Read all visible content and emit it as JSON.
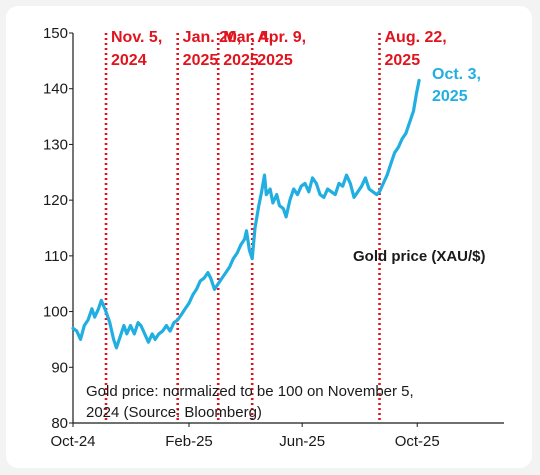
{
  "chart_data": {
    "type": "line",
    "title": "",
    "xlabel": "",
    "ylabel": "",
    "ylim": [
      80,
      150
    ],
    "yticks": [
      80,
      90,
      100,
      110,
      120,
      130,
      140,
      150
    ],
    "xlim": [
      "2024-10-01",
      "2026-01-01"
    ],
    "xticks": [
      {
        "date": "2024-10-01",
        "label": "Oct-24"
      },
      {
        "date": "2025-02-01",
        "label": "Feb-25"
      },
      {
        "date": "2025-06-01",
        "label": "Jun-25"
      },
      {
        "date": "2025-10-01",
        "label": "Oct-25"
      }
    ],
    "grid": false,
    "series": [
      {
        "name": "Gold price (XAU/$)",
        "color": "#21aee0",
        "points": [
          [
            "2024-10-01",
            97
          ],
          [
            "2024-10-05",
            96.5
          ],
          [
            "2024-10-09",
            95
          ],
          [
            "2024-10-13",
            97.5
          ],
          [
            "2024-10-17",
            98.5
          ],
          [
            "2024-10-21",
            100.5
          ],
          [
            "2024-10-24",
            99
          ],
          [
            "2024-10-28",
            100.5
          ],
          [
            "2024-10-31",
            102
          ],
          [
            "2024-11-05",
            100
          ],
          [
            "2024-11-09",
            98
          ],
          [
            "2024-11-13",
            95
          ],
          [
            "2024-11-16",
            93.5
          ],
          [
            "2024-11-20",
            95.5
          ],
          [
            "2024-11-24",
            97.5
          ],
          [
            "2024-11-27",
            96
          ],
          [
            "2024-12-01",
            97.5
          ],
          [
            "2024-12-05",
            96
          ],
          [
            "2024-12-09",
            98
          ],
          [
            "2024-12-12",
            97.5
          ],
          [
            "2024-12-16",
            96
          ],
          [
            "2024-12-20",
            94.5
          ],
          [
            "2024-12-24",
            96
          ],
          [
            "2024-12-27",
            95
          ],
          [
            "2024-12-31",
            96
          ],
          [
            "2025-01-04",
            96.5
          ],
          [
            "2025-01-08",
            97.5
          ],
          [
            "2025-01-12",
            96.5
          ],
          [
            "2025-01-16",
            98
          ],
          [
            "2025-01-20",
            98.5
          ],
          [
            "2025-01-24",
            99.5
          ],
          [
            "2025-01-28",
            100.5
          ],
          [
            "2025-02-01",
            101.5
          ],
          [
            "2025-02-05",
            103
          ],
          [
            "2025-02-09",
            104
          ],
          [
            "2025-02-13",
            105.5
          ],
          [
            "2025-02-17",
            106
          ],
          [
            "2025-02-21",
            107
          ],
          [
            "2025-02-24",
            106
          ],
          [
            "2025-02-28",
            104
          ],
          [
            "2025-03-04",
            105
          ],
          [
            "2025-03-08",
            106
          ],
          [
            "2025-03-12",
            107
          ],
          [
            "2025-03-16",
            108
          ],
          [
            "2025-03-20",
            109.5
          ],
          [
            "2025-03-24",
            110.5
          ],
          [
            "2025-03-28",
            112
          ],
          [
            "2025-04-01",
            113
          ],
          [
            "2025-04-03",
            114.5
          ],
          [
            "2025-04-06",
            111
          ],
          [
            "2025-04-09",
            109.5
          ],
          [
            "2025-04-12",
            115
          ],
          [
            "2025-04-16",
            119
          ],
          [
            "2025-04-19",
            121.5
          ],
          [
            "2025-04-22",
            124.5
          ],
          [
            "2025-04-24",
            121
          ],
          [
            "2025-04-28",
            122
          ],
          [
            "2025-05-01",
            119.5
          ],
          [
            "2025-05-05",
            121
          ],
          [
            "2025-05-08",
            119
          ],
          [
            "2025-05-12",
            118.5
          ],
          [
            "2025-05-15",
            117
          ],
          [
            "2025-05-19",
            120
          ],
          [
            "2025-05-23",
            122
          ],
          [
            "2025-05-27",
            121
          ],
          [
            "2025-05-31",
            122.5
          ],
          [
            "2025-06-04",
            123
          ],
          [
            "2025-06-08",
            121.5
          ],
          [
            "2025-06-12",
            124
          ],
          [
            "2025-06-16",
            123
          ],
          [
            "2025-06-20",
            121
          ],
          [
            "2025-06-24",
            120.5
          ],
          [
            "2025-06-28",
            122
          ],
          [
            "2025-07-02",
            121.5
          ],
          [
            "2025-07-06",
            121
          ],
          [
            "2025-07-10",
            123
          ],
          [
            "2025-07-14",
            122.5
          ],
          [
            "2025-07-18",
            124.5
          ],
          [
            "2025-07-22",
            123
          ],
          [
            "2025-07-26",
            120.5
          ],
          [
            "2025-07-30",
            121.5
          ],
          [
            "2025-08-03",
            122.5
          ],
          [
            "2025-08-07",
            124
          ],
          [
            "2025-08-11",
            122
          ],
          [
            "2025-08-15",
            121.5
          ],
          [
            "2025-08-19",
            121
          ],
          [
            "2025-08-22",
            121.5
          ],
          [
            "2025-08-26",
            123
          ],
          [
            "2025-08-30",
            124.5
          ],
          [
            "2025-09-03",
            126.5
          ],
          [
            "2025-09-07",
            128.5
          ],
          [
            "2025-09-11",
            129.5
          ],
          [
            "2025-09-15",
            131
          ],
          [
            "2025-09-19",
            132
          ],
          [
            "2025-09-23",
            134
          ],
          [
            "2025-09-27",
            136
          ],
          [
            "2025-09-30",
            139
          ],
          [
            "2025-10-03",
            141.5
          ]
        ]
      }
    ],
    "events": [
      {
        "date": "2024-11-05",
        "line1": "Nov. 5,",
        "line2": "2024"
      },
      {
        "date": "2025-01-20",
        "line1": "Jan. 20,",
        "line2": "2025"
      },
      {
        "date": "2025-03-04",
        "line1": "Mar. 4,",
        "line2": "2025"
      },
      {
        "date": "2025-04-09",
        "line1": "Apr. 9,",
        "line2": "2025"
      },
      {
        "date": "2025-08-22",
        "line1": "Aug. 22,",
        "line2": "2025"
      }
    ],
    "event_color": "#e0141e",
    "series_label": "Gold price (XAU/$)",
    "end_label": {
      "line1": "Oct. 3,",
      "line2": "2025"
    },
    "note": {
      "line1": "Gold price: normalized to be 100 on November 5,",
      "line2": "2024 (Source: Bloomberg)"
    }
  }
}
